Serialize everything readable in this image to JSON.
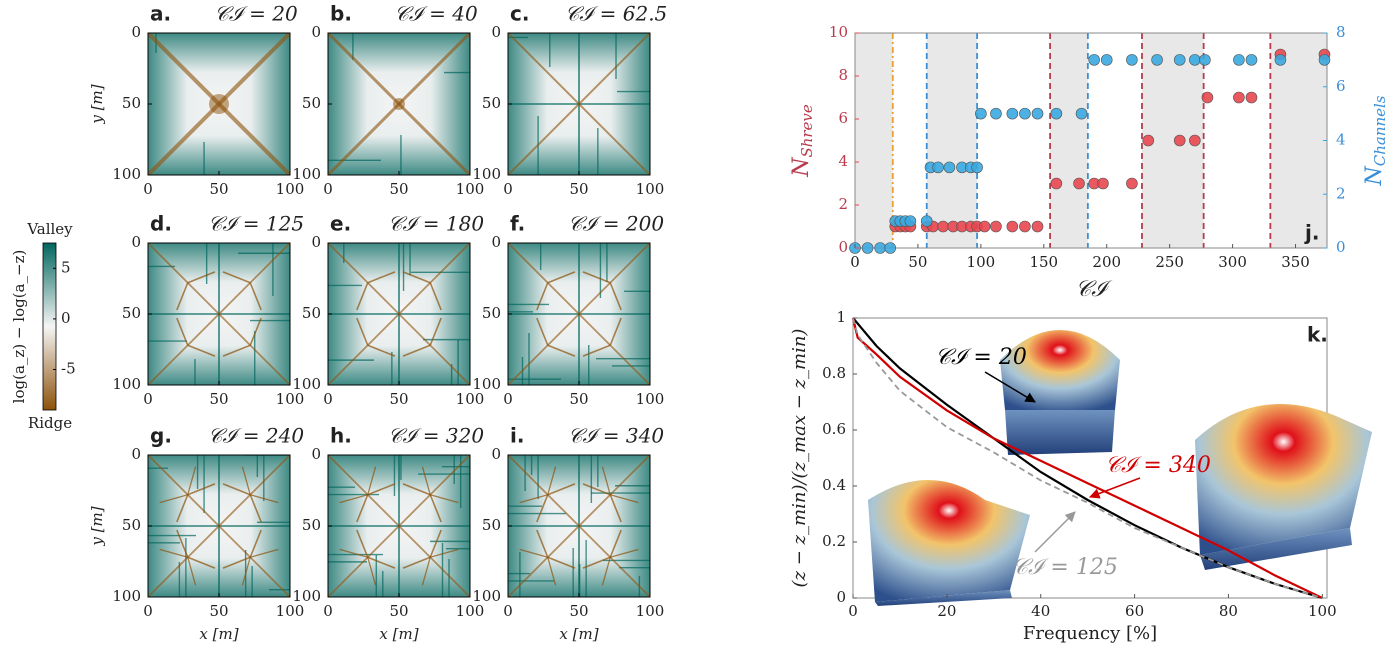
{
  "chart_data": [
    {
      "type": "heatmap",
      "panel_label": "a.",
      "title": "𝒞ℐ = 20",
      "ylabel": "y [m]",
      "xlim": [
        0,
        100
      ],
      "ylim": [
        100,
        0
      ],
      "xticks": [
        0,
        50,
        100
      ],
      "yticks": [
        0,
        50,
        100
      ],
      "colormap": [
        "#8c510a",
        "#f5f5f5",
        "#01665e"
      ]
    },
    {
      "type": "heatmap",
      "panel_label": "b.",
      "title": "𝒞ℐ = 40",
      "xlim": [
        0,
        100
      ],
      "ylim": [
        100,
        0
      ],
      "xticks": [
        0,
        50,
        100
      ],
      "yticks": [
        0,
        50,
        100
      ],
      "colormap": [
        "#8c510a",
        "#f5f5f5",
        "#01665e"
      ]
    },
    {
      "type": "heatmap",
      "panel_label": "c.",
      "title": "𝒞ℐ = 62.5",
      "xlim": [
        0,
        100
      ],
      "ylim": [
        100,
        0
      ],
      "xticks": [
        0,
        50,
        100
      ],
      "yticks": [
        0,
        50,
        100
      ],
      "colormap": [
        "#8c510a",
        "#f5f5f5",
        "#01665e"
      ]
    },
    {
      "type": "heatmap",
      "panel_label": "d.",
      "title": "𝒞ℐ = 125",
      "xlim": [
        0,
        100
      ],
      "ylim": [
        100,
        0
      ],
      "xticks": [
        0,
        50,
        100
      ],
      "yticks": [
        0,
        50,
        100
      ],
      "colormap": [
        "#8c510a",
        "#f5f5f5",
        "#01665e"
      ]
    },
    {
      "type": "heatmap",
      "panel_label": "e.",
      "title": "𝒞ℐ = 180",
      "xlim": [
        0,
        100
      ],
      "ylim": [
        100,
        0
      ],
      "xticks": [
        0,
        50,
        100
      ],
      "yticks": [
        0,
        50,
        100
      ],
      "colormap": [
        "#8c510a",
        "#f5f5f5",
        "#01665e"
      ]
    },
    {
      "type": "heatmap",
      "panel_label": "f.",
      "title": "𝒞ℐ = 200",
      "xlim": [
        0,
        100
      ],
      "ylim": [
        100,
        0
      ],
      "xticks": [
        0,
        50,
        100
      ],
      "yticks": [
        0,
        50,
        100
      ],
      "colormap": [
        "#8c510a",
        "#f5f5f5",
        "#01665e"
      ]
    },
    {
      "type": "heatmap",
      "panel_label": "g.",
      "title": "𝒞ℐ = 240",
      "ylabel": "y [m]",
      "xlabel": "x [m]",
      "xlim": [
        0,
        100
      ],
      "ylim": [
        100,
        0
      ],
      "xticks": [
        0,
        50,
        100
      ],
      "yticks": [
        0,
        50,
        100
      ],
      "colormap": [
        "#8c510a",
        "#f5f5f5",
        "#01665e"
      ]
    },
    {
      "type": "heatmap",
      "panel_label": "h.",
      "title": "𝒞ℐ = 320",
      "xlabel": "x [m]",
      "xlim": [
        0,
        100
      ],
      "ylim": [
        100,
        0
      ],
      "xticks": [
        0,
        50,
        100
      ],
      "yticks": [
        0,
        50,
        100
      ],
      "colormap": [
        "#8c510a",
        "#f5f5f5",
        "#01665e"
      ]
    },
    {
      "type": "heatmap",
      "panel_label": "i.",
      "title": "𝒞ℐ = 340",
      "xlabel": "x [m]",
      "xlim": [
        0,
        100
      ],
      "ylim": [
        100,
        0
      ],
      "xticks": [
        0,
        50,
        100
      ],
      "yticks": [
        0,
        50,
        100
      ],
      "colormap": [
        "#8c510a",
        "#f5f5f5",
        "#01665e"
      ]
    },
    {
      "type": "colorbar",
      "label": "log(a_z) − log(a_−z)",
      "top_label": "Valley",
      "bottom_label": "Ridge",
      "ylim": [
        -9,
        7.5
      ],
      "yticks": [
        -5,
        0,
        5
      ],
      "colormap": [
        "#8c510a",
        "#f5f5f5",
        "#01665e"
      ]
    },
    {
      "type": "scatter",
      "panel_label": "j.",
      "xlabel": "𝒞ℐ",
      "ylabel": "N",
      "ylabel_subscript": "Shreve",
      "y2label": "N",
      "y2label_subscript": "Channels",
      "xlim": [
        0,
        375
      ],
      "ylim": [
        0,
        10
      ],
      "y2lim": [
        0,
        8
      ],
      "xticks": [
        0,
        50,
        100,
        150,
        200,
        250,
        300,
        350
      ],
      "yticks": [
        0,
        2,
        4,
        6,
        8,
        10
      ],
      "y2ticks": [
        0,
        2,
        4,
        6,
        8
      ],
      "shaded_regions": [
        [
          0,
          30
        ],
        [
          57,
          97
        ],
        [
          155,
          185
        ],
        [
          228,
          277
        ],
        [
          330,
          375
        ]
      ],
      "vlines": [
        {
          "x": 30,
          "color": "#e8a030"
        },
        {
          "x": 57,
          "color": "#3a8fd8"
        },
        {
          "x": 97,
          "color": "#3a8fd8"
        },
        {
          "x": 185,
          "color": "#3a8fd8"
        },
        {
          "x": 155,
          "color": "#b83a4b"
        },
        {
          "x": 228,
          "color": "#b83a4b"
        },
        {
          "x": 277,
          "color": "#b83a4b"
        },
        {
          "x": 330,
          "color": "#b83a4b"
        }
      ],
      "series": [
        {
          "color": "#e8474f",
          "x": [
            32,
            36,
            40,
            44,
            57,
            62,
            70,
            78,
            85,
            92,
            97,
            103,
            112,
            125,
            135,
            145,
            160,
            178,
            190,
            197,
            220,
            233,
            258,
            270,
            280,
            305,
            315,
            338,
            373
          ],
          "values": [
            1,
            1,
            1,
            1,
            1,
            1,
            1,
            1,
            1,
            1,
            1,
            1,
            1,
            1,
            1,
            1,
            3,
            3,
            3,
            3,
            3,
            5,
            5,
            5,
            7,
            7,
            7,
            9,
            9
          ]
        },
        {
          "color": "#3aa8e0",
          "axis": "y2",
          "x": [
            0,
            10,
            20,
            28,
            32,
            36,
            40,
            44,
            57,
            60,
            66,
            75,
            85,
            92,
            97,
            100,
            112,
            125,
            135,
            145,
            160,
            180,
            190,
            200,
            220,
            240,
            258,
            270,
            278,
            305,
            315,
            338,
            373
          ],
          "values": [
            0,
            0,
            0,
            0,
            1,
            1,
            1,
            1,
            1,
            3,
            3,
            3,
            3,
            3,
            3,
            5,
            5,
            5,
            5,
            5,
            5,
            5,
            7,
            7,
            7,
            7,
            7,
            7,
            7,
            7,
            7,
            7,
            7
          ]
        }
      ]
    },
    {
      "type": "line",
      "panel_label": "k.",
      "xlabel": "Frequency [%]",
      "ylabel": "(z − z_min)/(z_max − z_min)",
      "xlim": [
        0,
        101
      ],
      "ylim": [
        0,
        1
      ],
      "xticks": [
        0,
        20,
        40,
        60,
        80,
        100
      ],
      "yticks": [
        0,
        0.2,
        0.4,
        0.6,
        0.8,
        1
      ],
      "series": [
        {
          "color": "#000000",
          "x": [
            0,
            2,
            5,
            10,
            20,
            30,
            40,
            50,
            60,
            70,
            80,
            90,
            100
          ],
          "values": [
            1,
            0.96,
            0.9,
            0.82,
            0.69,
            0.57,
            0.45,
            0.35,
            0.26,
            0.18,
            0.11,
            0.05,
            0
          ]
        },
        {
          "color": "#d00000",
          "x": [
            0,
            1,
            5,
            10,
            20,
            30,
            40,
            50,
            60,
            70,
            80,
            90,
            100
          ],
          "values": [
            1,
            0.93,
            0.87,
            0.79,
            0.67,
            0.57,
            0.49,
            0.41,
            0.33,
            0.25,
            0.17,
            0.08,
            0
          ]
        },
        {
          "color": "#999999",
          "dashed": true,
          "x": [
            0,
            1,
            5,
            10,
            20,
            30,
            40,
            50,
            60,
            70,
            80,
            90,
            100
          ],
          "values": [
            1,
            0.94,
            0.84,
            0.74,
            0.61,
            0.52,
            0.42,
            0.34,
            0.25,
            0.18,
            0.11,
            0.05,
            0
          ]
        }
      ],
      "annotations": [
        {
          "text": "𝒞ℐ = 20",
          "color": "#000000"
        },
        {
          "text": "𝒞ℐ = 340",
          "color": "#d00000"
        },
        {
          "text": "𝒞ℐ = 125",
          "color": "#999999"
        }
      ]
    }
  ]
}
